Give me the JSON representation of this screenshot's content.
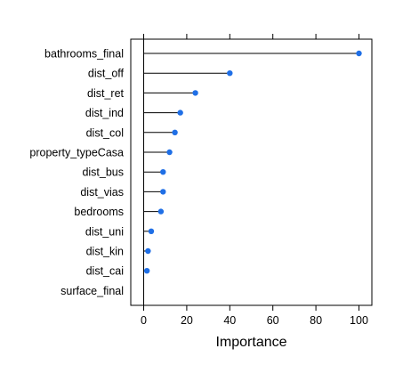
{
  "chart_data": {
    "type": "dotplot",
    "title": "",
    "xlabel": "Importance",
    "ylabel": "",
    "xlim": [
      -6,
      106
    ],
    "xticks": [
      0,
      20,
      40,
      60,
      80,
      100
    ],
    "xtick_labels": [
      "0",
      "20",
      "40",
      "60",
      "80",
      "100"
    ],
    "categories": [
      "bathrooms_final",
      "dist_off",
      "dist_ret",
      "dist_ind",
      "dist_col",
      "property_typeCasa",
      "dist_bus",
      "dist_vias",
      "bedrooms",
      "dist_uni",
      "dist_kin",
      "dist_cai",
      "surface_final"
    ],
    "values": [
      100,
      40,
      24,
      17,
      14.5,
      12,
      9,
      9,
      8,
      3.5,
      2,
      1.5,
      0
    ],
    "colors": {
      "point": "#1f6fe6",
      "line": "#000000",
      "frame": "#000000"
    }
  }
}
